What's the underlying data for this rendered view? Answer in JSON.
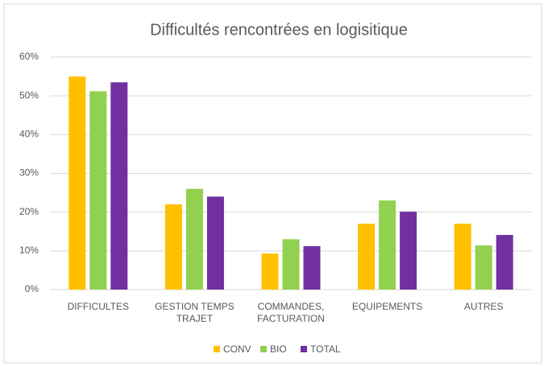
{
  "chart_data": {
    "type": "bar",
    "title": "Difficultés rencontrées en logisitique",
    "categories": [
      "DIFFICULTES",
      "GESTION TEMPS TRAJET",
      "COMMANDES, FACTURATION",
      "EQUIPEMENTS",
      "AUTRES"
    ],
    "series": [
      {
        "name": "CONV",
        "color": "#ffc000",
        "values": [
          55,
          22,
          9.3,
          17,
          17
        ]
      },
      {
        "name": "BIO",
        "color": "#92d050",
        "values": [
          51.2,
          26,
          13,
          23,
          11.4
        ]
      },
      {
        "name": "TOTAL",
        "color": "#7030a0",
        "values": [
          53.5,
          24,
          11.2,
          20.1,
          14.1
        ]
      }
    ],
    "ylim": [
      0,
      60
    ],
    "yticks": [
      {
        "value": 0,
        "label": "0%"
      },
      {
        "value": 10,
        "label": "10%"
      },
      {
        "value": 20,
        "label": "20%"
      },
      {
        "value": 30,
        "label": "30%"
      },
      {
        "value": 40,
        "label": "40%"
      },
      {
        "value": 50,
        "label": "50%"
      },
      {
        "value": 60,
        "label": "60%"
      }
    ],
    "grid": true,
    "legend": "bottom"
  }
}
